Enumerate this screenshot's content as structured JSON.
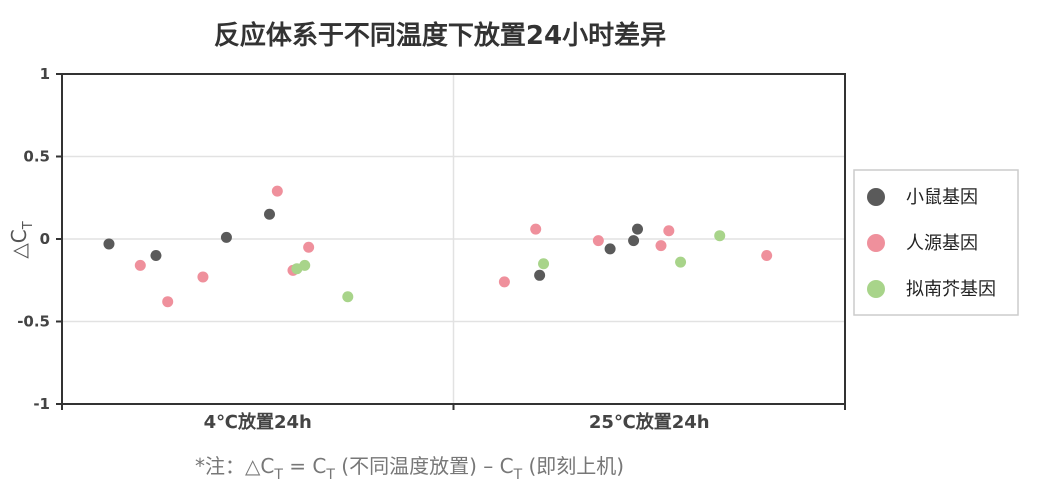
{
  "chart_data": {
    "type": "scatter",
    "title": "反应体系于不同温度下放置24小时差异",
    "ylabel_main": "△C",
    "ylabel_sub": "T",
    "ylim": [
      -1,
      1
    ],
    "yticks": [
      1,
      0.5,
      0,
      -0.5,
      -1
    ],
    "ytick_labels": [
      "1",
      "0.5",
      "0",
      "-0.5",
      "-1"
    ],
    "categories": [
      "4℃放置24h",
      "25℃放置24h"
    ],
    "grid": true,
    "legend_position": "right",
    "series": [
      {
        "name": "小鼠基因",
        "color": "#5a5a5a",
        "points": [
          {
            "category": 0,
            "offset": -0.38,
            "y": -0.03
          },
          {
            "category": 0,
            "offset": -0.26,
            "y": -0.1
          },
          {
            "category": 0,
            "offset": -0.08,
            "y": 0.01
          },
          {
            "category": 0,
            "offset": 0.03,
            "y": 0.15
          },
          {
            "category": 1,
            "offset": -0.28,
            "y": -0.22
          },
          {
            "category": 1,
            "offset": -0.1,
            "y": -0.06
          },
          {
            "category": 1,
            "offset": -0.04,
            "y": -0.01
          },
          {
            "category": 1,
            "offset": -0.03,
            "y": 0.06
          }
        ]
      },
      {
        "name": "人源基因",
        "color": "#ef909c",
        "points": [
          {
            "category": 0,
            "offset": -0.3,
            "y": -0.16
          },
          {
            "category": 0,
            "offset": -0.23,
            "y": -0.38
          },
          {
            "category": 0,
            "offset": -0.14,
            "y": -0.23
          },
          {
            "category": 0,
            "offset": 0.05,
            "y": 0.29
          },
          {
            "category": 0,
            "offset": 0.09,
            "y": -0.19
          },
          {
            "category": 0,
            "offset": 0.13,
            "y": -0.05
          },
          {
            "category": 1,
            "offset": -0.37,
            "y": -0.26
          },
          {
            "category": 1,
            "offset": -0.29,
            "y": 0.06
          },
          {
            "category": 1,
            "offset": -0.13,
            "y": -0.01
          },
          {
            "category": 1,
            "offset": 0.03,
            "y": -0.04
          },
          {
            "category": 1,
            "offset": 0.05,
            "y": 0.05
          },
          {
            "category": 1,
            "offset": 0.3,
            "y": -0.1
          }
        ]
      },
      {
        "name": "拟南芥基因",
        "color": "#a8d48a",
        "points": [
          {
            "category": 0,
            "offset": 0.1,
            "y": -0.18
          },
          {
            "category": 0,
            "offset": 0.12,
            "y": -0.16
          },
          {
            "category": 0,
            "offset": 0.23,
            "y": -0.35
          },
          {
            "category": 1,
            "offset": -0.27,
            "y": -0.15
          },
          {
            "category": 1,
            "offset": 0.08,
            "y": -0.14
          },
          {
            "category": 1,
            "offset": 0.18,
            "y": 0.02
          }
        ]
      }
    ]
  },
  "footnote": {
    "prefix": "*注：△C",
    "sub1": "T",
    "mid1": " = C",
    "sub2": "T",
    "mid2": " (不同温度放置) – C",
    "sub3": "T",
    "suffix": " (即刻上机)"
  }
}
